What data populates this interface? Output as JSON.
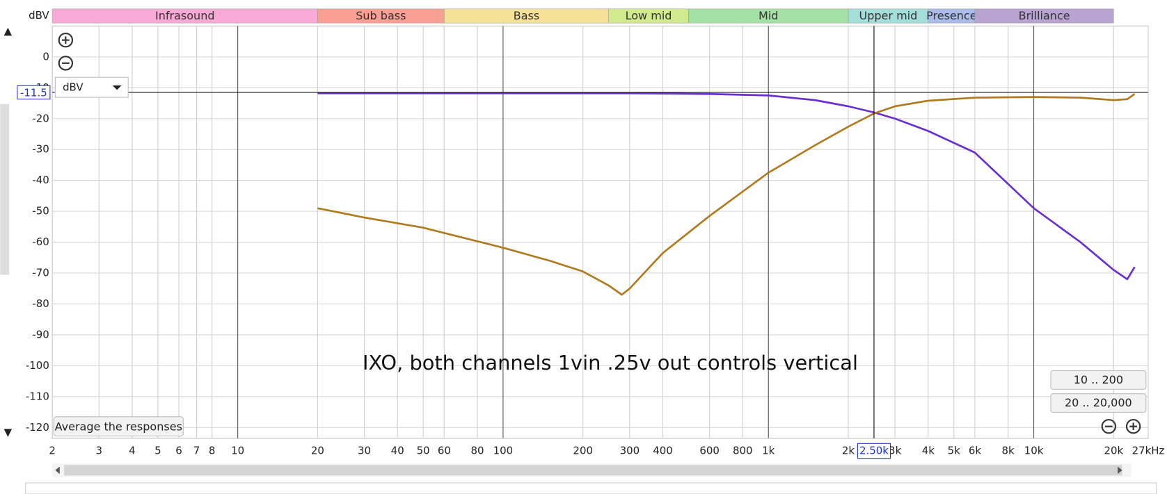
{
  "chart_data": {
    "type": "line",
    "y_label": "dBV",
    "annotation": "IXO, both channels 1vin .25v out controls vertical",
    "log_x": true,
    "xlim": [
      2,
      27000
    ],
    "ylim": [
      -123.5,
      10
    ],
    "yticks": [
      0,
      -10,
      -20,
      -30,
      -40,
      -50,
      -60,
      -70,
      -80,
      -90,
      -100,
      -110,
      -120
    ],
    "xticks": [
      2,
      3,
      4,
      5,
      6,
      7,
      8,
      10,
      20,
      30,
      40,
      50,
      60,
      80,
      100,
      200,
      300,
      400,
      600,
      800,
      {
        "value": 1000,
        "label": "1k"
      },
      {
        "value": 2000,
        "label": "2k"
      },
      {
        "value": 3000,
        "label": "3k"
      },
      {
        "value": 4000,
        "label": "4k"
      },
      {
        "value": 5000,
        "label": "5k"
      },
      {
        "value": 6000,
        "label": "6k"
      },
      {
        "value": 8000,
        "label": "8k"
      },
      {
        "value": 10000,
        "label": "10k"
      },
      {
        "value": 20000,
        "label": "20k"
      },
      {
        "value": 27000,
        "label": "27kHz"
      }
    ],
    "major_xticks": [
      10,
      100,
      1000,
      10000
    ],
    "cursor_x": {
      "value": 2500,
      "label": "2.50k"
    },
    "cursor_y": -11.5,
    "grid": true,
    "bands": [
      {
        "name": "Infrasound",
        "start": 2,
        "end": 20,
        "color": "#f9a9d6"
      },
      {
        "name": "Sub bass",
        "start": 20,
        "end": 60,
        "color": "#f99f94"
      },
      {
        "name": "Bass",
        "start": 60,
        "end": 250,
        "color": "#f6e197"
      },
      {
        "name": "Low mid",
        "start": 250,
        "end": 500,
        "color": "#d2ea8e"
      },
      {
        "name": "Mid",
        "start": 500,
        "end": 2000,
        "color": "#a3e2a4"
      },
      {
        "name": "Upper mid",
        "start": 2000,
        "end": 4000,
        "color": "#a3dedb"
      },
      {
        "name": "Presence",
        "start": 4000,
        "end": 6000,
        "color": "#abbbea"
      },
      {
        "name": "Brilliance",
        "start": 6000,
        "end": 20000,
        "color": "#b9a3d3"
      }
    ],
    "x": [
      20,
      30,
      50,
      100,
      150,
      200,
      250,
      280,
      300,
      400,
      600,
      1000,
      1500,
      2000,
      2500,
      3000,
      4000,
      6000,
      10000,
      15000,
      20000,
      22500,
      24000
    ],
    "series": [
      {
        "color": "#6a2fd0",
        "values": [
          -11.8,
          -11.8,
          -11.8,
          -11.8,
          -11.8,
          -11.8,
          -11.8,
          -11.8,
          -11.8,
          -11.9,
          -12.0,
          -12.5,
          -14,
          -16,
          -18,
          -20,
          -24,
          -31,
          -49,
          -60,
          -69,
          -72,
          -68
        ]
      },
      {
        "color": "#b07a1e",
        "values": [
          -49,
          -52,
          -55.3,
          -61.8,
          -66,
          -69.5,
          -74,
          -77,
          -75,
          -63.5,
          -51.5,
          -37.5,
          -28.6,
          -22.6,
          -18.3,
          -16,
          -14.2,
          -13.2,
          -13,
          -13.2,
          -14,
          -13.7,
          -12
        ]
      }
    ]
  },
  "ui": {
    "unit_dropdown": "dBV",
    "average_button": "Average the responses",
    "range_buttons": [
      "10 .. 200",
      "20 .. 20,000"
    ]
  }
}
